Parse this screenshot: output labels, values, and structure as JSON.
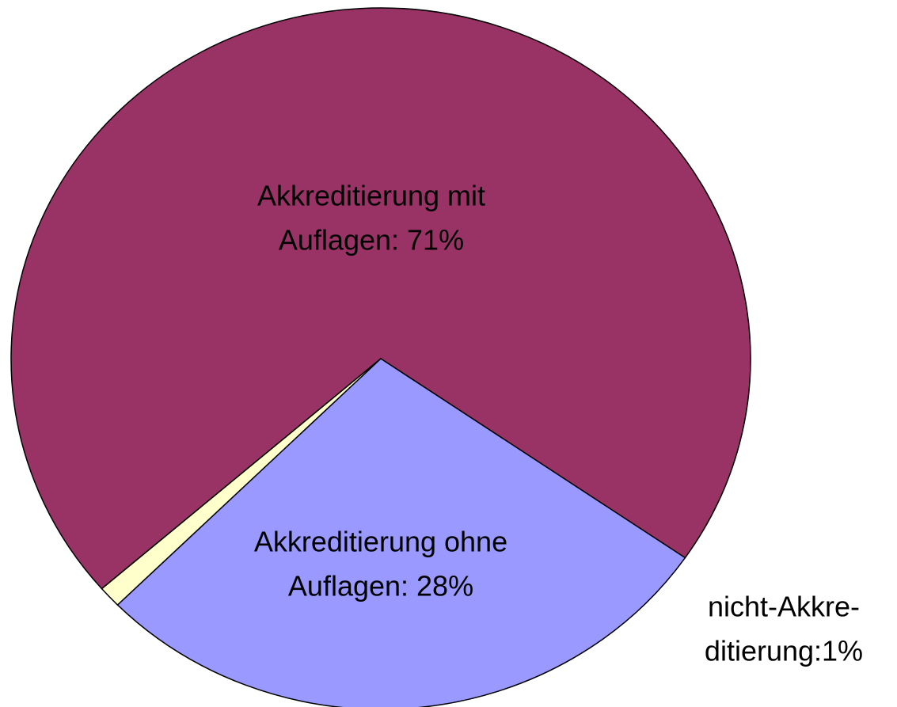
{
  "chart_data": {
    "type": "pie",
    "categories": [
      "Akkreditierung mit Auflagen",
      "Akkreditierung ohne Auflagen",
      "nicht-Akkreditierung"
    ],
    "values": [
      71,
      28,
      1
    ],
    "value_labels": [
      [
        "Akkreditierung mit",
        "Auflagen: 71%"
      ],
      [
        "Akkreditierung ohne",
        "Auflagen: 28%"
      ],
      [
        "nicht-Akkre-",
        "ditierung:1%"
      ]
    ],
    "colors": [
      "#993366",
      "#9999ff",
      "#ffffcc"
    ]
  }
}
